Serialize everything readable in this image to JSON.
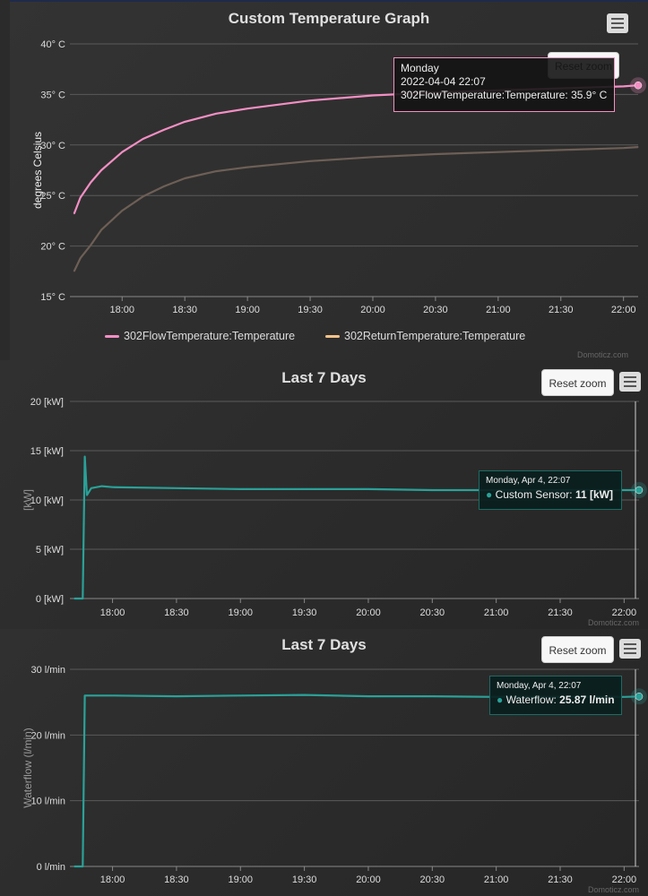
{
  "panels": [
    {
      "title": "Custom Temperature Graph",
      "reset_label": "Reset zoom",
      "credit": "Domoticz.com",
      "menu_icon": "hamburger-menu-icon",
      "tooltip": {
        "line1": "Monday",
        "line2": "2022-04-04 22:07",
        "line3": "302FlowTemperature:Temperature: 35.9° C"
      },
      "legend": [
        {
          "label": "302FlowTemperature:Temperature",
          "color": "#f48fc4"
        },
        {
          "label": "302ReturnTemperature:Temperature",
          "color": "#f5c38a"
        }
      ]
    },
    {
      "title": "Last 7 Days",
      "reset_label": "Reset zoom",
      "credit": "Domoticz.com",
      "menu_icon": "hamburger-menu-icon",
      "tooltip": {
        "date": "Monday, Apr 4, 22:07",
        "label": "Custom Sensor: ",
        "value": "11 [kW]"
      }
    },
    {
      "title": "Last 7 Days",
      "reset_label": "Reset zoom",
      "credit": "Domoticz.com",
      "menu_icon": "hamburger-menu-icon",
      "tooltip": {
        "date": "Monday, Apr 4, 22:07",
        "label": "Waterflow: ",
        "value": "25.87 l/min"
      }
    }
  ],
  "chart_data": [
    {
      "type": "line",
      "title": "Custom Temperature Graph",
      "xlabel": "",
      "ylabel": "degrees Celsius",
      "x_ticks": [
        "18:00",
        "18:30",
        "19:00",
        "19:30",
        "20:00",
        "20:30",
        "21:00",
        "21:30",
        "22:00"
      ],
      "y_ticks": [
        "15° C",
        "20° C",
        "25° C",
        "30° C",
        "35° C",
        "40° C"
      ],
      "ylim": [
        15,
        40
      ],
      "xlim": [
        "17:35",
        "22:07"
      ],
      "grid": true,
      "legend": "bottom",
      "series": [
        {
          "name": "302FlowTemperature:Temperature",
          "color": "#f48fc4",
          "x": [
            "17:37",
            "17:40",
            "17:45",
            "17:50",
            "18:00",
            "18:10",
            "18:20",
            "18:30",
            "18:45",
            "19:00",
            "19:15",
            "19:30",
            "20:00",
            "20:30",
            "21:00",
            "21:30",
            "22:00",
            "22:07"
          ],
          "y": [
            23.2,
            24.8,
            26.3,
            27.5,
            29.3,
            30.6,
            31.5,
            32.3,
            33.1,
            33.6,
            34.0,
            34.4,
            34.9,
            35.2,
            35.4,
            35.6,
            35.8,
            35.9
          ]
        },
        {
          "name": "302ReturnTemperature:Temperature",
          "color": "#6e5f56",
          "x": [
            "17:37",
            "17:40",
            "17:45",
            "17:50",
            "18:00",
            "18:10",
            "18:20",
            "18:30",
            "18:45",
            "19:00",
            "19:15",
            "19:30",
            "20:00",
            "20:30",
            "21:00",
            "21:30",
            "22:00",
            "22:07"
          ],
          "y": [
            17.5,
            18.8,
            20.1,
            21.6,
            23.5,
            24.9,
            25.9,
            26.7,
            27.4,
            27.8,
            28.1,
            28.4,
            28.8,
            29.1,
            29.3,
            29.5,
            29.7,
            29.8
          ]
        }
      ]
    },
    {
      "type": "line",
      "title": "Last 7 Days",
      "xlabel": "",
      "ylabel": "[kW]",
      "x_ticks": [
        "18:00",
        "18:30",
        "19:00",
        "19:30",
        "20:00",
        "20:30",
        "21:00",
        "21:30",
        "22:00"
      ],
      "y_ticks": [
        "0 [kW]",
        "5 [kW]",
        "10 [kW]",
        "15 [kW]",
        "20 [kW]"
      ],
      "ylim": [
        0,
        20
      ],
      "xlim": [
        "17:40",
        "22:07"
      ],
      "grid": true,
      "series": [
        {
          "name": "Custom Sensor",
          "color": "#2aa198",
          "x": [
            "17:42",
            "17:45",
            "17:46",
            "17:47",
            "17:48",
            "17:50",
            "17:55",
            "18:00",
            "18:30",
            "19:00",
            "19:30",
            "20:00",
            "20:30",
            "21:00",
            "21:30",
            "22:00",
            "22:07"
          ],
          "y": [
            0,
            0,
            0,
            14.4,
            10.5,
            11.2,
            11.4,
            11.3,
            11.2,
            11.1,
            11.1,
            11.1,
            11.0,
            11.0,
            11.0,
            11.0,
            11.0
          ]
        }
      ]
    },
    {
      "type": "line",
      "title": "Last 7 Days",
      "xlabel": "",
      "ylabel": "Waterflow (l/min)",
      "x_ticks": [
        "18:00",
        "18:30",
        "19:00",
        "19:30",
        "20:00",
        "20:30",
        "21:00",
        "21:30",
        "22:00"
      ],
      "y_ticks": [
        "0 l/min",
        "10 l/min",
        "20 l/min",
        "30 l/min"
      ],
      "ylim": [
        0,
        30
      ],
      "xlim": [
        "17:40",
        "22:07"
      ],
      "grid": true,
      "series": [
        {
          "name": "Waterflow",
          "color": "#2aa198",
          "x": [
            "17:42",
            "17:45",
            "17:46",
            "17:47",
            "17:50",
            "18:00",
            "18:30",
            "19:00",
            "19:30",
            "20:00",
            "20:30",
            "21:00",
            "21:30",
            "22:00",
            "22:07"
          ],
          "y": [
            0,
            0,
            0,
            26.0,
            26.0,
            26.0,
            25.9,
            26.0,
            26.1,
            25.9,
            25.9,
            25.8,
            25.8,
            25.8,
            25.87
          ]
        }
      ]
    }
  ]
}
